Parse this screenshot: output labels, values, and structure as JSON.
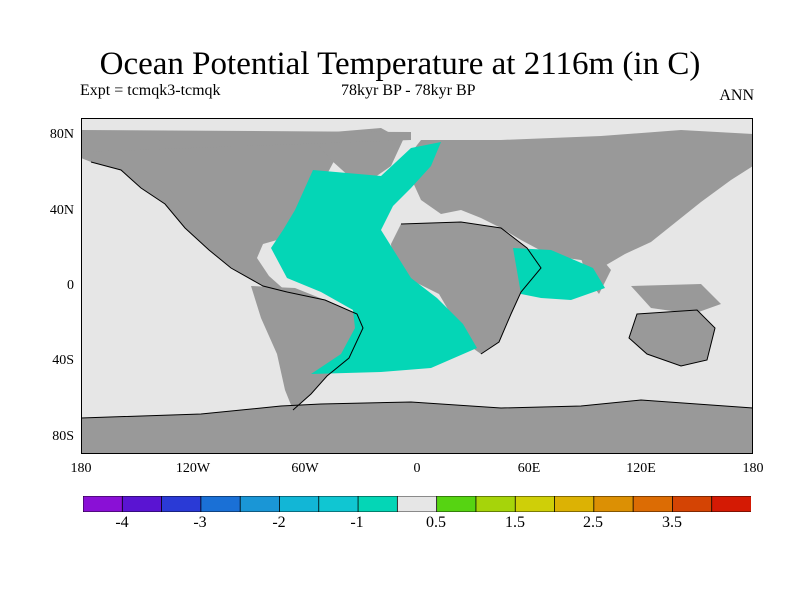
{
  "title": "Ocean Potential Temperature at 2116m (in C)",
  "subtitle_left": "Expt = tcmqk3-tcmqk",
  "subtitle_center": "78kyr BP - 78kyr BP",
  "subtitle_right": "ANN",
  "axes": {
    "x_ticks": [
      "180",
      "120W",
      "60W",
      "0",
      "60E",
      "120E",
      "180"
    ],
    "y_ticks": [
      "80N",
      "40N",
      "0",
      "40S",
      "80S"
    ]
  },
  "colors": {
    "land": "#999999",
    "ocean_near_zero": "#e6e6e6",
    "ocean_cooling": "#04d6b6",
    "coastline": "#000000",
    "frame": "#000000"
  },
  "colorbar": {
    "colors": [
      "#8a10d6",
      "#5a14d2",
      "#2a3ad6",
      "#1a70d6",
      "#1a96d6",
      "#12b6d6",
      "#10c6d2",
      "#04d6b6",
      "#e6e6e6",
      "#56d412",
      "#a6d40a",
      "#cfcf08",
      "#dcb204",
      "#dc9004",
      "#dc6c04",
      "#d44404",
      "#d41a04"
    ],
    "labels": [
      "-4",
      "-3",
      "-2",
      "-1",
      "0.5",
      "1.5",
      "2.5",
      "3.5"
    ]
  }
}
